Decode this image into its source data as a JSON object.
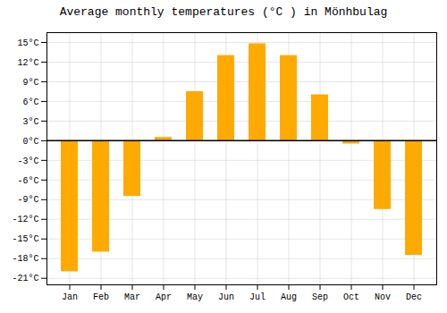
{
  "chart_data": {
    "type": "bar",
    "title": "Average monthly temperatures (°C ) in Mönhbulag",
    "categories": [
      "Jan",
      "Feb",
      "Mar",
      "Apr",
      "May",
      "Jun",
      "Jul",
      "Aug",
      "Sep",
      "Oct",
      "Nov",
      "Dec"
    ],
    "values": [
      -20,
      -17,
      -8.5,
      0.5,
      7.5,
      13,
      14.8,
      13,
      7,
      -0.5,
      -10.5,
      -17.5
    ],
    "color": "#FFAA00",
    "ylim": [
      -22,
      16.5
    ],
    "yticks": [
      {
        "value": -21,
        "label": "-21°C"
      },
      {
        "value": -18,
        "label": "-18°C"
      },
      {
        "value": -15,
        "label": "-15°C"
      },
      {
        "value": -12,
        "label": "-12°C"
      },
      {
        "value": -9,
        "label": "-9°C"
      },
      {
        "value": -6,
        "label": "-6°C"
      },
      {
        "value": -3,
        "label": "-3°C"
      },
      {
        "value": 0,
        "label": "0°C"
      },
      {
        "value": 3,
        "label": "3°C"
      },
      {
        "value": 6,
        "label": "6°C"
      },
      {
        "value": 9,
        "label": "9°C"
      },
      {
        "value": 12,
        "label": "12°C"
      },
      {
        "value": 15,
        "label": "15°C"
      }
    ],
    "grid": true
  }
}
